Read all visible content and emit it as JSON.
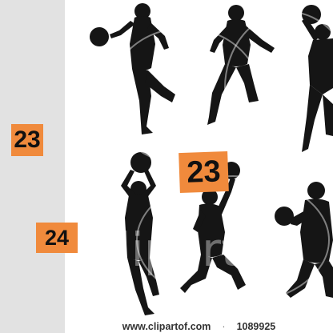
{
  "tags": [
    "23",
    "24",
    "23"
  ],
  "footer": {
    "site": "www.clipartof.com",
    "separator": "·",
    "image_number": "1089925"
  },
  "watermark": "Clipart"
}
